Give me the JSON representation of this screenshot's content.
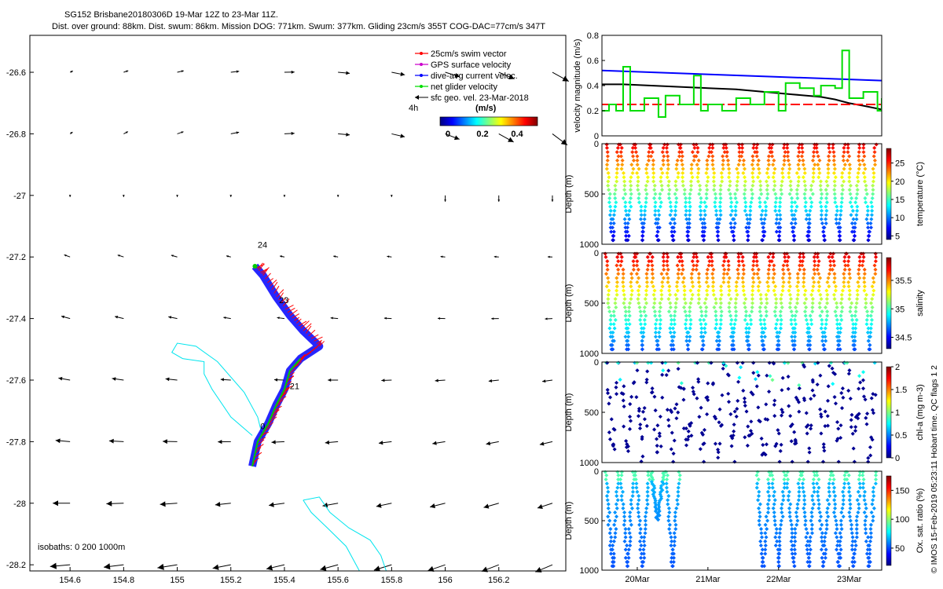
{
  "title": {
    "line1": "SG152 Brisbane20180306D 19-Mar 12Z to 23-Mar 11Z.",
    "line2": "Dist. over ground: 88km. Dist. swum: 86km. Mission DOG: 771km. Swum: 377km. Gliding 23cm/s 355T COG-DAC=77cm/s 347T"
  },
  "side_note": "© IMOS 15-Feb-2019 05:23:11 Hobart time. QC flags 1  2",
  "chart_data": [
    {
      "type": "scatter",
      "name": "map",
      "xlim": [
        154.45,
        156.45
      ],
      "ylim": [
        -28.22,
        -26.48
      ],
      "xticks": [
        154.6,
        154.8,
        155,
        155.2,
        155.4,
        155.6,
        155.8,
        156,
        156.2
      ],
      "xtick_labels": [
        "154.6",
        "154.8",
        "155",
        "155.2",
        "155.4",
        "155.6",
        "155.8",
        "156",
        "156.2"
      ],
      "yticks": [
        -26.6,
        -26.8,
        -27,
        -27.2,
        -27.4,
        -27.6,
        -27.8,
        -28,
        -28.2
      ],
      "ytick_labels": [
        "-26.6",
        "-26.8",
        "-27",
        "-27.2",
        "-27.4",
        "-27.6",
        "-27.8",
        "-28",
        "-28.2"
      ],
      "legend": [
        {
          "label": "25cm/s swim vector",
          "color": "#ff0000",
          "marker": "dot"
        },
        {
          "label": "GPS surface velocity",
          "color": "#cc00cc",
          "marker": "dot"
        },
        {
          "label": "dive-avg current veloc.",
          "color": "#0000ff",
          "marker": "dot"
        },
        {
          "label": "net glider velocity",
          "color": "#00dd00",
          "marker": "dot"
        },
        {
          "label": "sfc geo. vel. 23-Mar-2018",
          "color": "#000000",
          "marker": "arrow"
        }
      ],
      "legend_position": "top-right",
      "colorbar": {
        "label": "(m/s)",
        "ticks": [
          "0",
          "0.2",
          "0.4"
        ],
        "range": [
          0,
          0.5
        ]
      },
      "label_4h": "4h",
      "isobath_label": "isobaths: 0   200   1000m",
      "day_labels": [
        {
          "text": "24",
          "lon": 155.3,
          "lat": -27.17
        },
        {
          "text": "23",
          "lon": 155.38,
          "lat": -27.35
        },
        {
          "text": "21",
          "lon": 155.42,
          "lat": -27.63
        },
        {
          "text": "0",
          "lon": 155.31,
          "lat": -27.76
        }
      ],
      "track": [
        {
          "lon": 155.28,
          "lat": -27.88
        },
        {
          "lon": 155.3,
          "lat": -27.8
        },
        {
          "lon": 155.34,
          "lat": -27.74
        },
        {
          "lon": 155.37,
          "lat": -27.68
        },
        {
          "lon": 155.4,
          "lat": -27.63
        },
        {
          "lon": 155.42,
          "lat": -27.57
        },
        {
          "lon": 155.46,
          "lat": -27.53
        },
        {
          "lon": 155.53,
          "lat": -27.49
        },
        {
          "lon": 155.47,
          "lat": -27.44
        },
        {
          "lon": 155.42,
          "lat": -27.39
        },
        {
          "lon": 155.37,
          "lat": -27.33
        },
        {
          "lon": 155.32,
          "lat": -27.26
        },
        {
          "lon": 155.29,
          "lat": -27.23
        }
      ],
      "isobath_1000m": [
        {
          "lon": 155.28,
          "lat": -27.78
        },
        {
          "lon": 155.2,
          "lat": -27.72
        },
        {
          "lon": 155.13,
          "lat": -27.63
        },
        {
          "lon": 155.1,
          "lat": -27.58
        },
        {
          "lon": 155.1,
          "lat": -27.54
        },
        {
          "lon": 155.02,
          "lat": -27.53
        },
        {
          "lon": 154.98,
          "lat": -27.51
        },
        {
          "lon": 155.0,
          "lat": -27.48
        },
        {
          "lon": 155.07,
          "lat": -27.49
        },
        {
          "lon": 155.15,
          "lat": -27.54
        },
        {
          "lon": 155.25,
          "lat": -27.64
        },
        {
          "lon": 155.3,
          "lat": -27.72
        },
        {
          "lon": 155.32,
          "lat": -27.79
        }
      ],
      "isobath_200m": [
        {
          "lon": 155.47,
          "lat": -27.99
        },
        {
          "lon": 155.53,
          "lat": -27.98
        },
        {
          "lon": 155.57,
          "lat": -28.03
        },
        {
          "lon": 155.64,
          "lat": -28.08
        },
        {
          "lon": 155.72,
          "lat": -28.12
        },
        {
          "lon": 155.76,
          "lat": -28.17
        },
        {
          "lon": 155.78,
          "lat": -28.22
        }
      ],
      "isobath_0m": [
        {
          "lon": 155.68,
          "lat": -28.22
        },
        {
          "lon": 155.63,
          "lat": -28.14
        },
        {
          "lon": 155.56,
          "lat": -28.08
        },
        {
          "lon": 155.5,
          "lat": -28.03
        },
        {
          "lon": 155.47,
          "lat": -27.99
        }
      ]
    },
    {
      "type": "line",
      "name": "velocity magnitude",
      "ylabel": "velocity magnitude (m/s)",
      "ylim": [
        0,
        0.8
      ],
      "yticks": [
        0,
        0.2,
        0.4,
        0.6,
        0.8
      ],
      "ytick_labels": [
        "0",
        "0.2",
        "0.4",
        "0.6",
        "0.8"
      ],
      "xlim": [
        19.5,
        23.46
      ],
      "series": [
        {
          "color": "#0000ff",
          "x": [
            19.5,
            23.46
          ],
          "y": [
            0.52,
            0.44
          ]
        },
        {
          "color": "#000000",
          "x": [
            19.5,
            19.8,
            20.2,
            20.6,
            21.0,
            21.4,
            21.8,
            22.2,
            22.6,
            22.8,
            23.0,
            23.2,
            23.46
          ],
          "y": [
            0.41,
            0.41,
            0.4,
            0.39,
            0.38,
            0.37,
            0.35,
            0.33,
            0.31,
            0.29,
            0.26,
            0.24,
            0.21
          ]
        },
        {
          "color": "#ff0000",
          "x": [
            19.5,
            23.46
          ],
          "y": [
            0.25,
            0.25
          ],
          "dash": true
        },
        {
          "color": "#00dd00",
          "x": [
            19.5,
            19.6,
            19.7,
            19.8,
            19.9,
            20.1,
            20.3,
            20.4,
            20.6,
            20.8,
            20.9,
            21.0,
            21.2,
            21.4,
            21.6,
            21.8,
            22.0,
            22.1,
            22.3,
            22.5,
            22.6,
            22.8,
            22.9,
            23.0,
            23.2,
            23.4,
            23.46
          ],
          "y": [
            0.2,
            0.25,
            0.2,
            0.55,
            0.2,
            0.3,
            0.15,
            0.32,
            0.25,
            0.48,
            0.2,
            0.25,
            0.2,
            0.3,
            0.25,
            0.35,
            0.2,
            0.42,
            0.38,
            0.32,
            0.4,
            0.38,
            0.68,
            0.3,
            0.35,
            0.2,
            0.3
          ]
        }
      ]
    },
    {
      "type": "scatter",
      "name": "temperature section",
      "ylabel": "Depth (m)",
      "ylim": [
        1000,
        0
      ],
      "yticks": [
        0,
        500,
        1000
      ],
      "ytick_labels": [
        "0",
        "500",
        "1000"
      ],
      "colorbar": {
        "label": "temperature (°C)",
        "ticks": [
          "25",
          "20",
          "15",
          "10",
          "5"
        ],
        "range": [
          4,
          29
        ],
        "colormap": "jet"
      },
      "dives": 18,
      "sampling": "full"
    },
    {
      "type": "scatter",
      "name": "salinity section",
      "ylabel": "Depth (m)",
      "ylim": [
        1000,
        0
      ],
      "yticks": [
        0,
        500,
        1000
      ],
      "ytick_labels": [
        "0",
        "500",
        "1000"
      ],
      "colorbar": {
        "label": "salinity",
        "ticks": [
          "35.5",
          "35",
          "34.5"
        ],
        "range": [
          34.3,
          35.9
        ],
        "colormap": "jet"
      },
      "dives": 18,
      "sampling": "full"
    },
    {
      "type": "scatter",
      "name": "chl-a section",
      "ylabel": "Depth (m)",
      "ylim": [
        1000,
        0
      ],
      "yticks": [
        0,
        500,
        1000
      ],
      "ytick_labels": [
        "0",
        "500",
        "1000"
      ],
      "colorbar": {
        "label": "chl-a (mg m-3)",
        "ticks": [
          "2",
          "1.5",
          "1",
          "0.5",
          "0"
        ],
        "range": [
          0,
          2
        ],
        "colormap": "jet"
      },
      "dives": 18,
      "sampling": "sparse"
    },
    {
      "type": "scatter",
      "name": "oxygen section",
      "ylabel": "Depth (m)",
      "ylim": [
        1000,
        0
      ],
      "yticks": [
        0,
        500,
        1000
      ],
      "ytick_labels": [
        "0",
        "500",
        "1000"
      ],
      "xlim": [
        19.5,
        23.46
      ],
      "xticks": [
        20,
        21,
        22,
        23
      ],
      "xtick_labels": [
        "20Mar",
        "21Mar",
        "22Mar",
        "23Mar"
      ],
      "colorbar": {
        "label": "Ox. sat. ratio (%)",
        "ticks": [
          "150",
          "100",
          "50"
        ],
        "range": [
          20,
          175
        ],
        "colormap": "jet"
      },
      "dives": 18,
      "sampling": "partial"
    }
  ]
}
